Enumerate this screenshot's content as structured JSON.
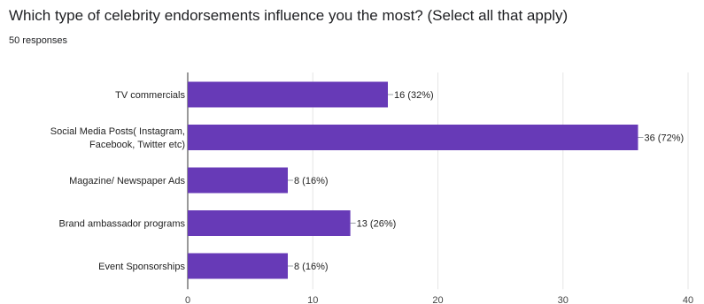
{
  "question": {
    "title": "Which type of celebrity endorsements influence you the most? (Select all that apply)",
    "responses": "50 responses"
  },
  "colors": {
    "bar": "#673ab7",
    "grid": "#e6e6e6",
    "connector": "#9aa0a6"
  },
  "chart_data": {
    "type": "bar",
    "orientation": "horizontal",
    "categories": [
      [
        "TV commercials"
      ],
      [
        "Social Media Posts( Instagram,",
        "Facebook, Twitter etc)"
      ],
      [
        "Magazine/ Newspaper Ads"
      ],
      [
        "Brand ambassador programs"
      ],
      [
        "Event Sponsorships"
      ]
    ],
    "values": [
      16,
      36,
      8,
      13,
      8
    ],
    "value_labels": [
      "16 (32%)",
      "36 (72%)",
      "8 (16%)",
      "13 (26%)",
      "8 (16%)"
    ],
    "xlim": [
      0,
      40
    ],
    "xticks": [
      "0",
      "10",
      "20",
      "30",
      "40"
    ],
    "grid": true
  }
}
